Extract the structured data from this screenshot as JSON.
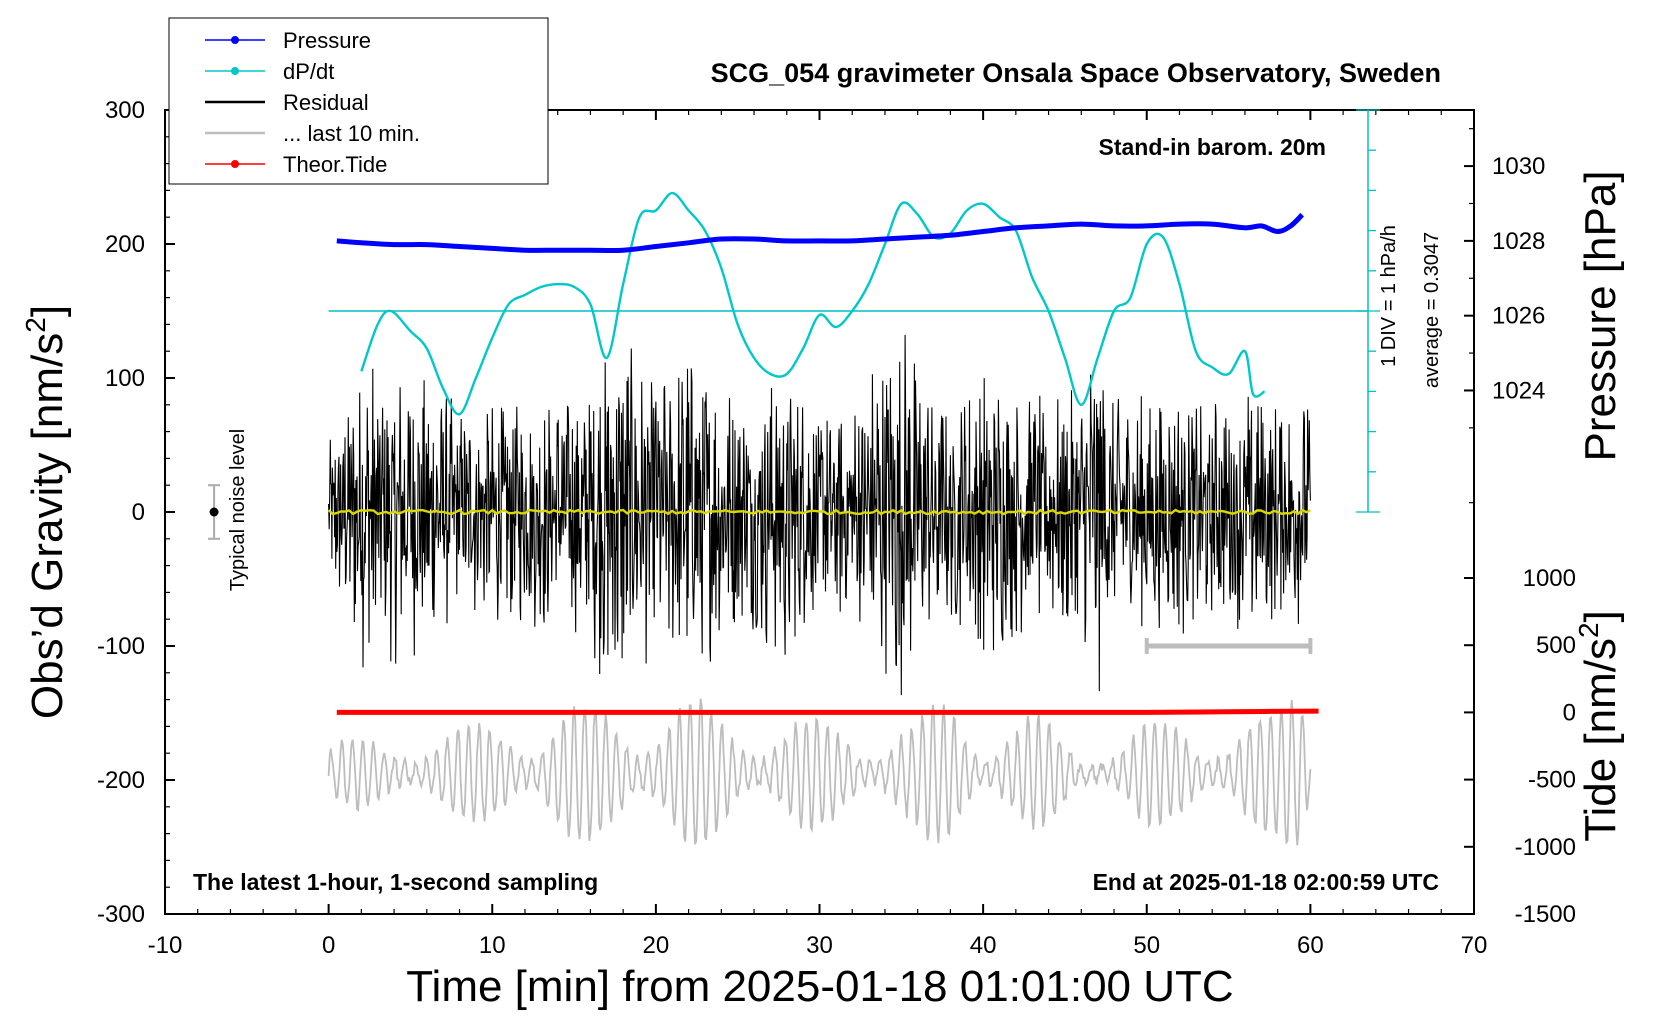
{
  "chart_data": {
    "type": "line",
    "title": "SCG_054 gravimeter Onsala Space Observatory, Sweden",
    "xlabel": "Time [min] from 2025-01-18 01:01:00 UTC",
    "xlim": [
      -10,
      70
    ],
    "xticks": [
      "-10",
      "0",
      "10",
      "20",
      "30",
      "40",
      "50",
      "60",
      "70"
    ],
    "y_left": {
      "label_main": "Obs’d Gravity [nm/s",
      "label_sup": "2",
      "label_end": "]",
      "lim": [
        -300,
        300
      ],
      "ticks": [
        "300",
        "200",
        "100",
        "0",
        "-100",
        "-200",
        "-300"
      ]
    },
    "y_right_pressure": {
      "label": "Pressure [hPa]",
      "lim": [
        1020.75,
        1031.5
      ],
      "ticks": [
        "1030",
        "1028",
        "1026",
        "1024"
      ]
    },
    "y_right_tide": {
      "label_main": "Tide [nm/s",
      "label_sup": "2",
      "label_end": "]",
      "lim": [
        -1500,
        1000
      ],
      "ticks": [
        "1000",
        "500",
        "0",
        "-500",
        "-1000",
        "-1500"
      ]
    },
    "legend": [
      {
        "label": "Pressure",
        "color": "#0000ff",
        "marker": true
      },
      {
        "label": "dP/dt",
        "color": "#00c8c8",
        "marker": true
      },
      {
        "label": "Residual",
        "color": "#000000",
        "marker": false
      },
      {
        "label": "... last 10 min.",
        "color": "#bdbdbd",
        "marker": false
      },
      {
        "label": "Theor.Tide",
        "color": "#ff0000",
        "marker": true
      }
    ],
    "annotations": {
      "stand_in": "Stand-in barom. 20m",
      "div_note": "1 DIV = 1 hPa/h",
      "avg_note": "average = 0.3047",
      "noise": "Typical noise level",
      "latest": "The latest 1-hour, 1-second sampling",
      "end_at": "End at 2025-01-18 02:00:59 UTC"
    },
    "noise_level": {
      "x": -7,
      "center": 0,
      "half_range": 20
    },
    "last10_bar": {
      "x_start": 50,
      "x_end": 60,
      "y": -100
    },
    "series": [
      {
        "name": "Pressure",
        "axis": "pressure_hPa",
        "color": "#0000ff",
        "x": [
          0.5,
          2,
          4,
          6,
          8,
          10,
          12,
          14,
          16,
          18,
          20,
          22,
          24,
          26,
          28,
          30,
          32,
          34,
          36,
          38,
          40,
          42,
          44,
          46,
          48,
          50,
          52,
          54,
          56,
          57,
          58,
          58.8,
          59.5
        ],
        "y": [
          1028.0,
          1027.95,
          1027.9,
          1027.9,
          1027.85,
          1027.8,
          1027.75,
          1027.75,
          1027.75,
          1027.75,
          1027.85,
          1027.95,
          1028.05,
          1028.05,
          1028.0,
          1028.0,
          1028.0,
          1028.05,
          1028.1,
          1028.15,
          1028.25,
          1028.35,
          1028.4,
          1028.45,
          1028.4,
          1028.4,
          1028.45,
          1028.45,
          1028.35,
          1028.4,
          1028.25,
          1028.4,
          1028.7
        ]
      },
      {
        "name": "dP/dt",
        "axis": "gravity_plot_units",
        "color": "#00c8c8",
        "mean_line": 150,
        "x": [
          2,
          3,
          3.8,
          5,
          6,
          7,
          8,
          9,
          10,
          11,
          12,
          13,
          14,
          15,
          16,
          17,
          18,
          19,
          20,
          21,
          22,
          23,
          24,
          25,
          26,
          27,
          28,
          29,
          30,
          31,
          32,
          33,
          34,
          35,
          36,
          37,
          38,
          39,
          40,
          41,
          42,
          43,
          44,
          45,
          46,
          47,
          48,
          49,
          50,
          51,
          52,
          53,
          54,
          55,
          56,
          56.5,
          57.2
        ],
        "y": [
          105,
          140,
          150,
          135,
          122,
          92,
          73,
          100,
          130,
          155,
          162,
          168,
          170,
          168,
          155,
          115,
          170,
          220,
          225,
          238,
          225,
          210,
          182,
          140,
          115,
          103,
          103,
          122,
          147,
          138,
          150,
          170,
          200,
          230,
          222,
          205,
          208,
          225,
          230,
          220,
          210,
          175,
          150,
          115,
          80,
          115,
          150,
          160,
          200,
          205,
          170,
          120,
          108,
          103,
          120,
          88,
          90
        ]
      },
      {
        "name": "Theor.Tide",
        "axis": "tide_nm_s2",
        "color": "#ff0000",
        "x": [
          0.5,
          10,
          20,
          30,
          40,
          50,
          55,
          60.5
        ],
        "y": [
          0,
          0,
          0,
          0,
          0,
          0,
          5,
          10
        ]
      }
    ],
    "residual_envelope": {
      "name": "Residual",
      "axis": "gravity_nm_s2",
      "x_range": [
        0,
        60
      ],
      "x_minutes": [
        0,
        2,
        4,
        6,
        8,
        10,
        12,
        14,
        16,
        17.5,
        19,
        21,
        22.5,
        24,
        26,
        28,
        30,
        32,
        34,
        35,
        36,
        38,
        40,
        42,
        44,
        46,
        47,
        48,
        50,
        52,
        54,
        56,
        58,
        60
      ],
      "amplitude_nm_s2": [
        55,
        120,
        115,
        105,
        80,
        90,
        85,
        95,
        100,
        160,
        115,
        120,
        130,
        100,
        95,
        120,
        80,
        90,
        135,
        150,
        120,
        80,
        120,
        95,
        90,
        95,
        150,
        85,
        90,
        95,
        85,
        100,
        85,
        90
      ]
    },
    "last10_envelope": {
      "name": "... last 10 min.",
      "axis": "gravity_nm_s2",
      "x_range": [
        0,
        60
      ],
      "center": -195,
      "x_minutes": [
        0,
        3,
        6,
        9,
        12,
        14,
        16,
        18,
        20,
        22,
        25,
        28,
        31,
        34,
        36,
        38,
        40,
        43,
        46,
        48,
        50,
        53,
        56,
        58,
        59.5,
        60
      ],
      "amplitude_nm_s2": [
        25,
        25,
        40,
        35,
        50,
        60,
        50,
        60,
        60,
        60,
        45,
        45,
        40,
        40,
        40,
        65,
        45,
        45,
        20,
        30,
        40,
        40,
        45,
        45,
        90,
        40
      ]
    },
    "yellow_line": {
      "axis": "gravity_nm_s2",
      "value": 0,
      "x_range": [
        0,
        60
      ]
    }
  }
}
